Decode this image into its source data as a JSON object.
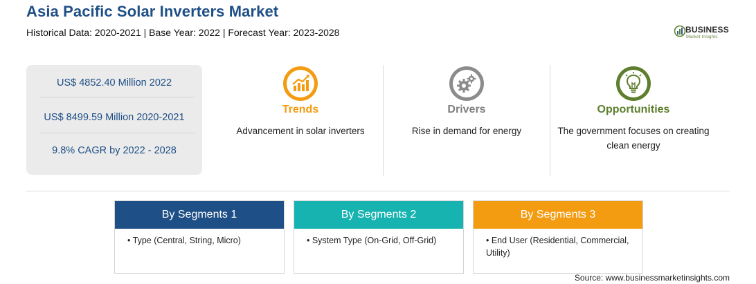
{
  "header": {
    "title": "Asia Pacific Solar Inverters Market",
    "subtitle": "Historical Data: 2020-2021 | Base Year: 2022 | Forecast Year: 2023-2028"
  },
  "logo": {
    "word": "BUSINESS",
    "sub": "Market Insights"
  },
  "stats": [
    "US$ 4852.40 Million 2022",
    "US$ 8499.59 Million 2020-2021",
    "9.8% CAGR by 2022 - 2028"
  ],
  "columns": [
    {
      "label": "Trends",
      "description": "Advancement in solar inverters",
      "color": "#f39c12",
      "icon": "trending-up-chart-icon"
    },
    {
      "label": "Drivers",
      "description": "Rise in demand for energy",
      "color": "#7f7f7f",
      "icon": "gears-icon"
    },
    {
      "label": "Opportunities",
      "description": "The government focuses on creating clean energy",
      "color": "#5d7e2c",
      "icon": "lightbulb-icon"
    }
  ],
  "segments": [
    {
      "title": "By Segments 1",
      "item": "• Type (Central, String, Micro)",
      "color": "#1e4f86"
    },
    {
      "title": "By Segments 2",
      "item": "• System Type (On-Grid, Off-Grid)",
      "color": "#17b3b0"
    },
    {
      "title": "By Segments 3",
      "item": "• End User (Residential, Commercial, Utility)",
      "color": "#f39c12"
    }
  ],
  "source": "Source: www.businessmarketinsights.com"
}
